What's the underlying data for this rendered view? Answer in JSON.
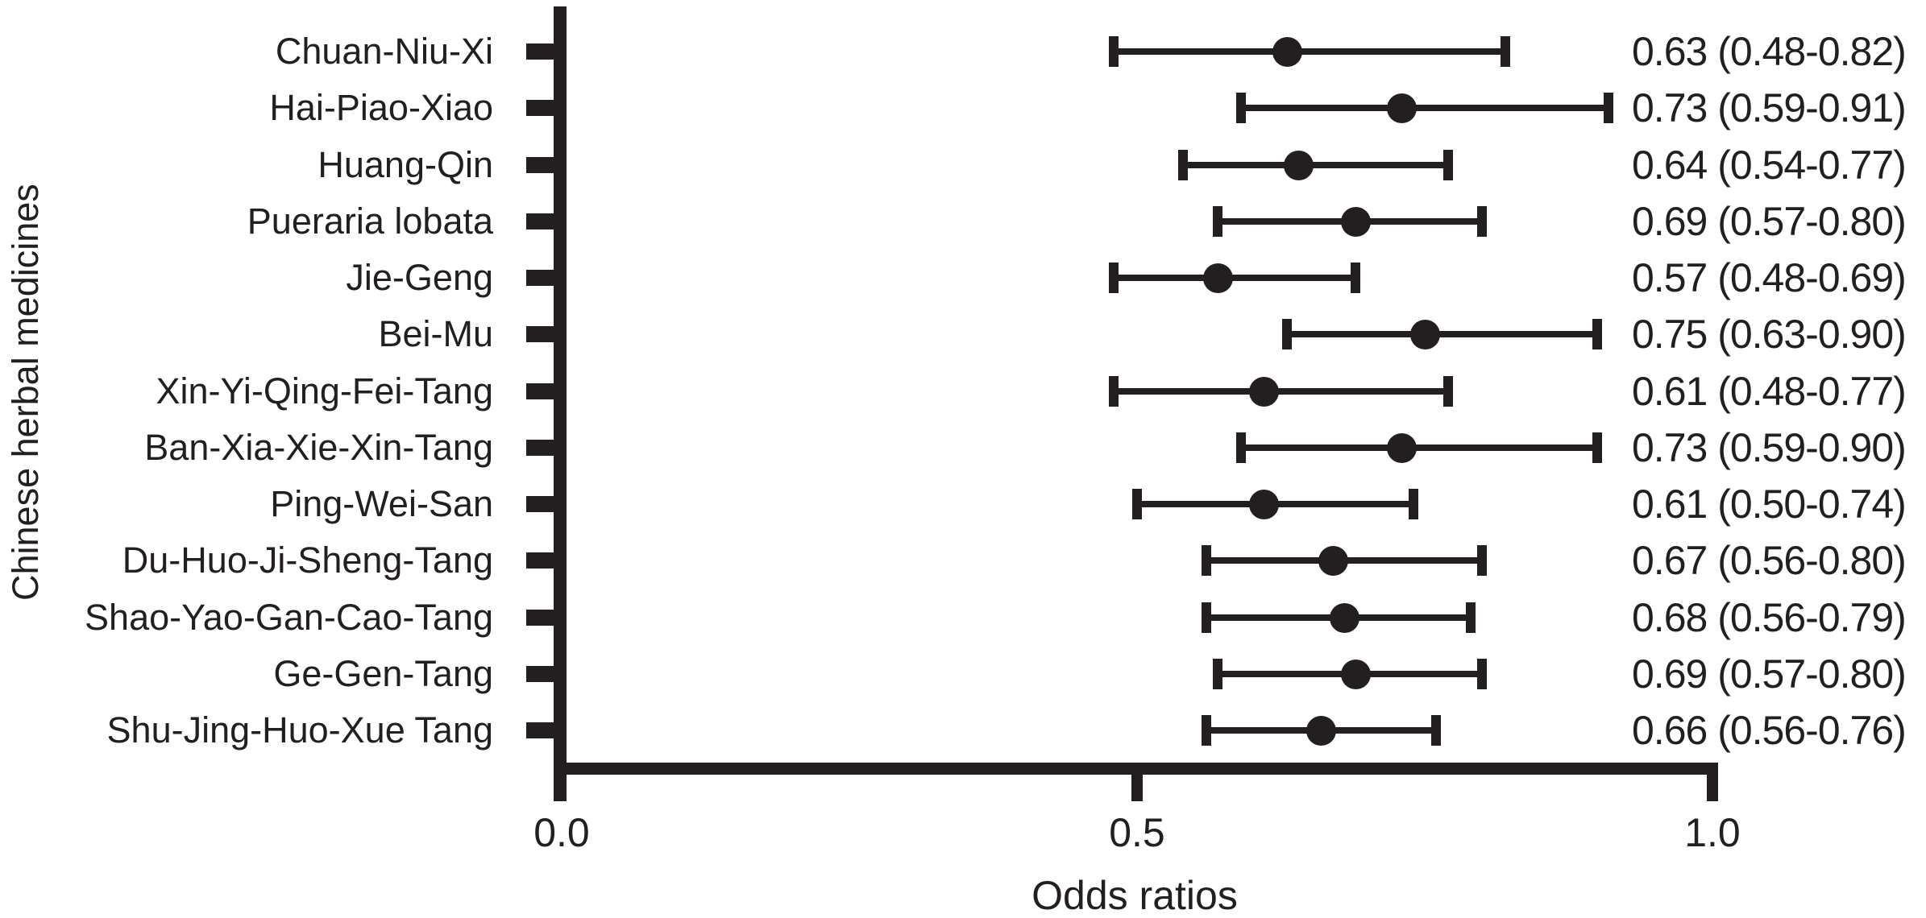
{
  "chart_data": {
    "type": "scatter",
    "subtype": "forest-plot",
    "orientation": "horizontal",
    "title": "",
    "xlabel": "Odds ratios",
    "ylabel": "Chinese herbal medicines",
    "xlim": [
      0.0,
      1.0
    ],
    "x_ticks": [
      {
        "value": 0.0,
        "label": "0.0"
      },
      {
        "value": 0.5,
        "label": "0.5"
      },
      {
        "value": 1.0,
        "label": "1.0"
      }
    ],
    "grid": false,
    "legend": false,
    "marker_color": "#231f20",
    "ink_color": "#231f20",
    "background_color": "#ffffff",
    "categories": [
      "Chuan-Niu-Xi",
      "Hai-Piao-Xiao",
      "Huang-Qin",
      "Pueraria lobata",
      "Jie-Geng",
      "Bei-Mu",
      "Xin-Yi-Qing-Fei-Tang",
      "Ban-Xia-Xie-Xin-Tang",
      "Ping-Wei-San",
      "Du-Huo-Ji-Sheng-Tang",
      "Shao-Yao-Gan-Cao-Tang",
      "Ge-Gen-Tang",
      "Shu-Jing-Huo-Xue Tang"
    ],
    "rows": [
      {
        "label": "Chuan-Niu-Xi",
        "or": 0.63,
        "ci_low": 0.48,
        "ci_high": 0.82,
        "text": "0.63 (0.48-0.82)"
      },
      {
        "label": "Hai-Piao-Xiao",
        "or": 0.73,
        "ci_low": 0.59,
        "ci_high": 0.91,
        "text": "0.73 (0.59-0.91)"
      },
      {
        "label": "Huang-Qin",
        "or": 0.64,
        "ci_low": 0.54,
        "ci_high": 0.77,
        "text": "0.64 (0.54-0.77)"
      },
      {
        "label": "Pueraria lobata",
        "or": 0.69,
        "ci_low": 0.57,
        "ci_high": 0.8,
        "text": "0.69 (0.57-0.80)"
      },
      {
        "label": "Jie-Geng",
        "or": 0.57,
        "ci_low": 0.48,
        "ci_high": 0.69,
        "text": "0.57 (0.48-0.69)"
      },
      {
        "label": "Bei-Mu",
        "or": 0.75,
        "ci_low": 0.63,
        "ci_high": 0.9,
        "text": "0.75 (0.63-0.90)"
      },
      {
        "label": "Xin-Yi-Qing-Fei-Tang",
        "or": 0.61,
        "ci_low": 0.48,
        "ci_high": 0.77,
        "text": "0.61 (0.48-0.77)"
      },
      {
        "label": "Ban-Xia-Xie-Xin-Tang",
        "or": 0.73,
        "ci_low": 0.59,
        "ci_high": 0.9,
        "text": "0.73 (0.59-0.90)"
      },
      {
        "label": "Ping-Wei-San",
        "or": 0.61,
        "ci_low": 0.5,
        "ci_high": 0.74,
        "text": "0.61 (0.50-0.74)"
      },
      {
        "label": "Du-Huo-Ji-Sheng-Tang",
        "or": 0.67,
        "ci_low": 0.56,
        "ci_high": 0.8,
        "text": "0.67 (0.56-0.80)"
      },
      {
        "label": "Shao-Yao-Gan-Cao-Tang",
        "or": 0.68,
        "ci_low": 0.56,
        "ci_high": 0.79,
        "text": "0.68 (0.56-0.79)"
      },
      {
        "label": "Ge-Gen-Tang",
        "or": 0.69,
        "ci_low": 0.57,
        "ci_high": 0.8,
        "text": "0.69 (0.57-0.80)"
      },
      {
        "label": "Shu-Jing-Huo-Xue Tang",
        "or": 0.66,
        "ci_low": 0.56,
        "ci_high": 0.76,
        "text": "0.66 (0.56-0.76)"
      }
    ]
  }
}
